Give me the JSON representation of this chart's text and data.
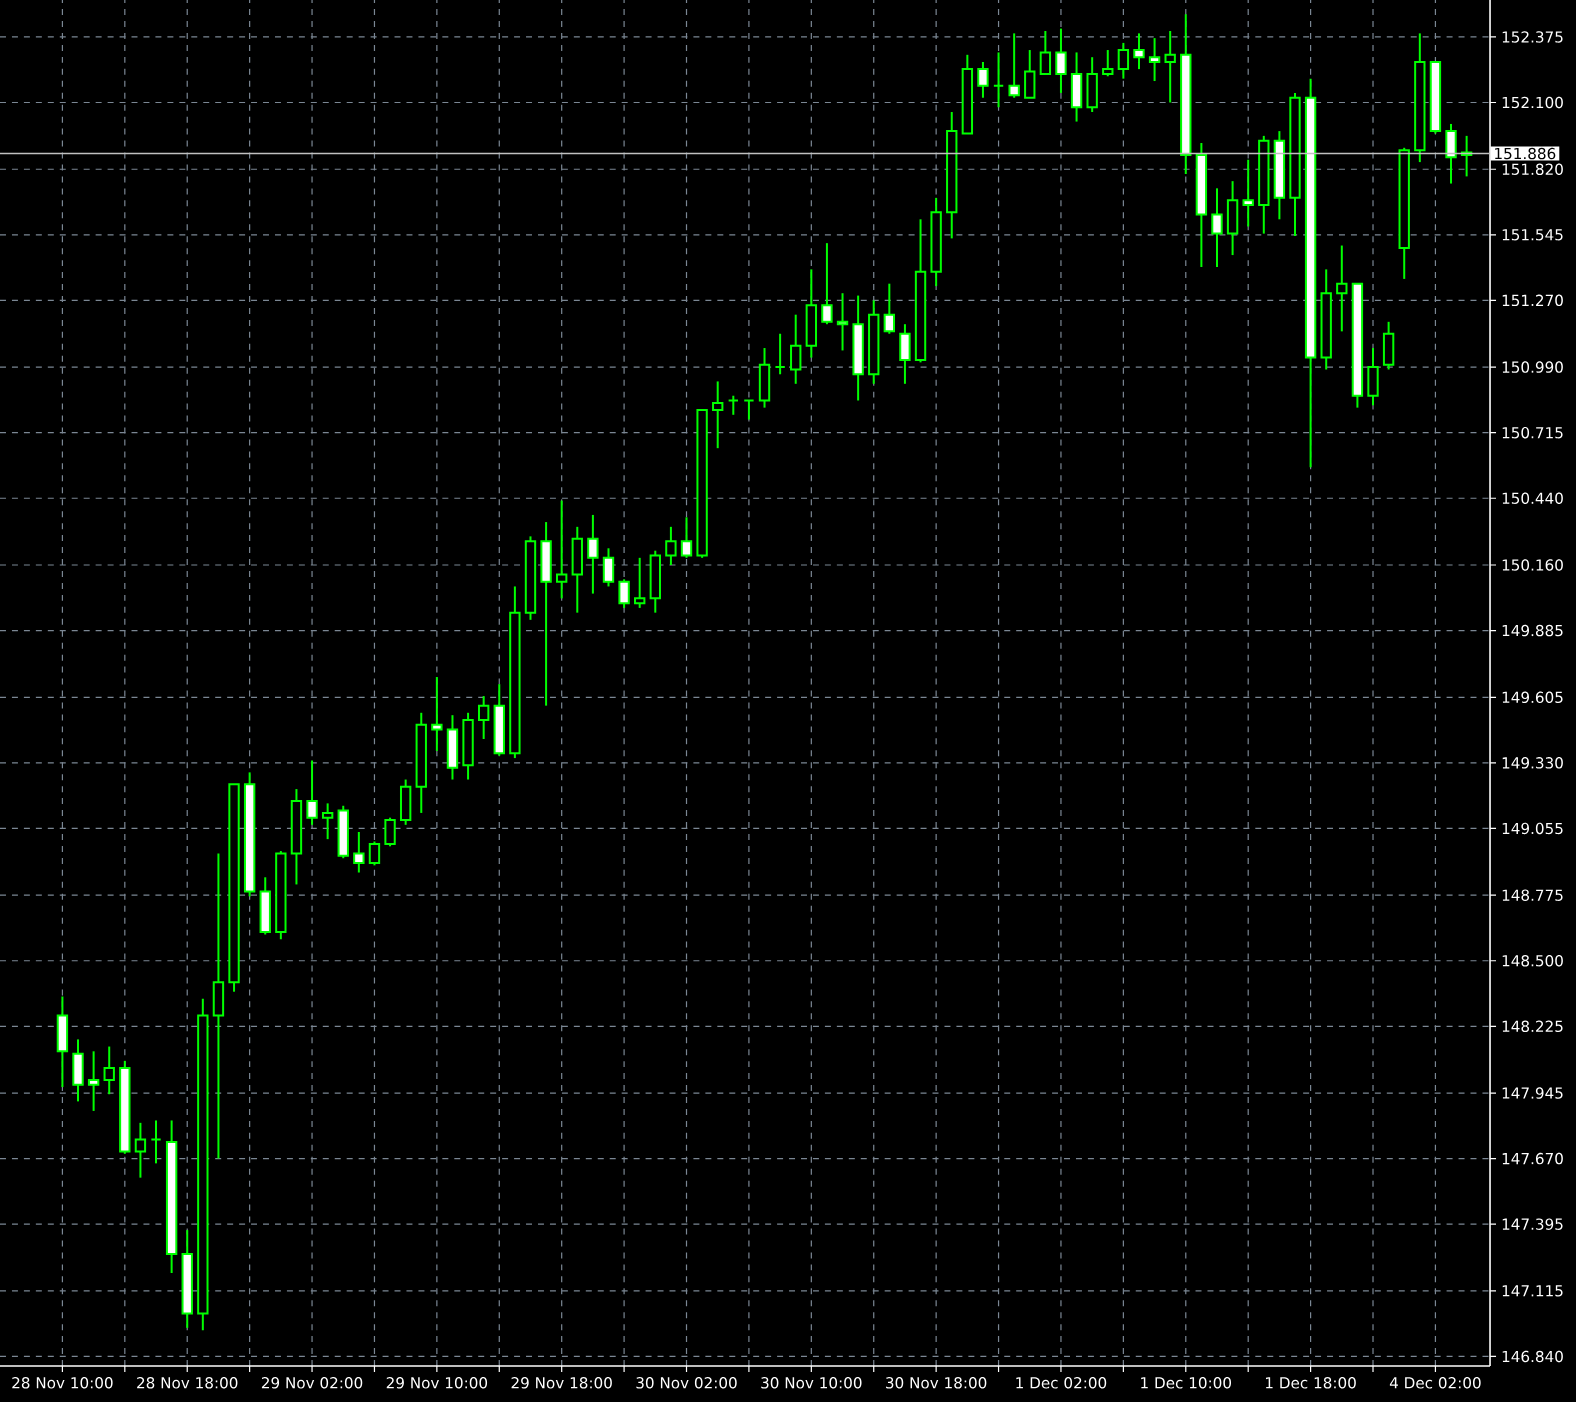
{
  "chart_data": {
    "type": "candlestick",
    "color": "#00ff00",
    "grid": true,
    "categories": [
      "28 Nov 10:00",
      null,
      null,
      null,
      null,
      null,
      null,
      null,
      "28 Nov 18:00",
      null,
      null,
      null,
      null,
      null,
      null,
      null,
      "29 Nov 02:00",
      null,
      null,
      null,
      null,
      null,
      null,
      null,
      "29 Nov 10:00",
      null,
      null,
      null,
      null,
      null,
      null,
      null,
      "29 Nov 18:00",
      null,
      null,
      null,
      null,
      null,
      null,
      null,
      "30 Nov 02:00",
      null,
      null,
      null,
      null,
      null,
      null,
      null,
      "30 Nov 10:00",
      null,
      null,
      null,
      null,
      null,
      null,
      null,
      "30 Nov 18:00",
      null,
      null,
      null,
      null,
      null,
      null,
      null,
      "1 Dec 02:00",
      null,
      null,
      null,
      null,
      null,
      null,
      null,
      "1 Dec 10:00",
      null,
      null,
      null,
      null,
      null,
      null,
      null,
      "1 Dec 18:00",
      null,
      null,
      null,
      null,
      null,
      null,
      null,
      "4 Dec 02:00",
      null,
      null
    ],
    "ohlc": [
      [
        148.27,
        148.35,
        147.97,
        148.12
      ],
      [
        148.11,
        148.17,
        147.91,
        147.98
      ],
      [
        148.0,
        148.12,
        147.87,
        147.98
      ],
      [
        148.0,
        148.14,
        147.94,
        148.05
      ],
      [
        148.05,
        148.08,
        147.69,
        147.7
      ],
      [
        147.7,
        147.82,
        147.59,
        147.75
      ],
      [
        147.75,
        147.83,
        147.65,
        147.75
      ],
      [
        147.74,
        147.83,
        147.19,
        147.27
      ],
      [
        147.27,
        147.37,
        146.96,
        147.02
      ],
      [
        147.02,
        148.34,
        146.95,
        148.27
      ],
      [
        148.27,
        148.95,
        147.67,
        148.41
      ],
      [
        148.41,
        149.24,
        148.37,
        149.24
      ],
      [
        149.24,
        149.29,
        148.77,
        148.79
      ],
      [
        148.79,
        148.85,
        148.61,
        148.62
      ],
      [
        148.62,
        148.96,
        148.59,
        148.95
      ],
      [
        148.95,
        149.22,
        148.82,
        149.17
      ],
      [
        149.17,
        149.34,
        149.07,
        149.1
      ],
      [
        149.1,
        149.16,
        149.01,
        149.12
      ],
      [
        149.13,
        149.15,
        148.93,
        148.94
      ],
      [
        148.95,
        149.04,
        148.87,
        148.91
      ],
      [
        148.91,
        149.0,
        148.9,
        148.99
      ],
      [
        148.99,
        149.1,
        148.98,
        149.09
      ],
      [
        149.09,
        149.26,
        149.07,
        149.23
      ],
      [
        149.23,
        149.54,
        149.12,
        149.49
      ],
      [
        149.49,
        149.69,
        149.38,
        149.47
      ],
      [
        149.47,
        149.53,
        149.26,
        149.31
      ],
      [
        149.32,
        149.54,
        149.26,
        149.51
      ],
      [
        149.51,
        149.61,
        149.43,
        149.57
      ],
      [
        149.57,
        149.66,
        149.36,
        149.37
      ],
      [
        149.37,
        150.07,
        149.35,
        149.96
      ],
      [
        149.96,
        150.28,
        149.93,
        150.26
      ],
      [
        150.26,
        150.34,
        149.57,
        150.09
      ],
      [
        150.09,
        150.43,
        150.02,
        150.12
      ],
      [
        150.12,
        150.32,
        149.96,
        150.27
      ],
      [
        150.27,
        150.37,
        150.04,
        150.19
      ],
      [
        150.19,
        150.23,
        150.07,
        150.09
      ],
      [
        150.09,
        150.1,
        149.98,
        150.0
      ],
      [
        150.0,
        150.19,
        149.98,
        150.02
      ],
      [
        150.02,
        150.22,
        149.96,
        150.2
      ],
      [
        150.2,
        150.32,
        150.16,
        150.26
      ],
      [
        150.26,
        150.36,
        150.19,
        150.2
      ],
      [
        150.2,
        150.81,
        150.19,
        150.81
      ],
      [
        150.81,
        150.93,
        150.65,
        150.84
      ],
      [
        150.85,
        150.87,
        150.79,
        150.85
      ],
      [
        150.85,
        150.85,
        150.77,
        150.85
      ],
      [
        150.85,
        151.07,
        150.82,
        151.0
      ],
      [
        150.99,
        151.13,
        150.96,
        150.99
      ],
      [
        150.98,
        151.21,
        150.92,
        151.08
      ],
      [
        151.08,
        151.4,
        151.03,
        151.25
      ],
      [
        151.25,
        151.51,
        151.17,
        151.18
      ],
      [
        151.18,
        151.3,
        151.06,
        151.17
      ],
      [
        151.17,
        151.29,
        150.85,
        150.96
      ],
      [
        150.96,
        151.27,
        150.92,
        151.21
      ],
      [
        151.21,
        151.34,
        151.13,
        151.14
      ],
      [
        151.13,
        151.17,
        150.92,
        151.02
      ],
      [
        151.02,
        151.61,
        151.01,
        151.39
      ],
      [
        151.39,
        151.7,
        151.33,
        151.64
      ],
      [
        151.64,
        152.06,
        151.53,
        151.98
      ],
      [
        151.97,
        152.3,
        151.97,
        152.24
      ],
      [
        152.24,
        152.27,
        152.12,
        152.17
      ],
      [
        152.17,
        152.31,
        152.08,
        152.17
      ],
      [
        152.17,
        152.39,
        152.12,
        152.13
      ],
      [
        152.12,
        152.32,
        152.12,
        152.23
      ],
      [
        152.22,
        152.4,
        152.22,
        152.31
      ],
      [
        152.31,
        152.41,
        152.14,
        152.22
      ],
      [
        152.22,
        152.31,
        152.02,
        152.08
      ],
      [
        152.08,
        152.29,
        152.06,
        152.22
      ],
      [
        152.22,
        152.32,
        152.21,
        152.24
      ],
      [
        152.24,
        152.35,
        152.2,
        152.32
      ],
      [
        152.32,
        152.39,
        152.24,
        152.29
      ],
      [
        152.29,
        152.37,
        152.19,
        152.27
      ],
      [
        152.27,
        152.4,
        152.1,
        152.3
      ],
      [
        152.3,
        152.47,
        151.8,
        151.88
      ],
      [
        151.88,
        151.93,
        151.41,
        151.63
      ],
      [
        151.63,
        151.74,
        151.41,
        151.55
      ],
      [
        151.55,
        151.77,
        151.46,
        151.69
      ],
      [
        151.69,
        151.86,
        151.58,
        151.67
      ],
      [
        151.67,
        151.96,
        151.55,
        151.94
      ],
      [
        151.94,
        151.98,
        151.61,
        151.7
      ],
      [
        151.7,
        152.14,
        151.54,
        152.12
      ],
      [
        152.12,
        152.2,
        150.57,
        151.03
      ],
      [
        151.03,
        151.4,
        150.98,
        151.3
      ],
      [
        151.3,
        151.5,
        151.14,
        151.34
      ],
      [
        151.34,
        151.34,
        150.82,
        150.87
      ],
      [
        150.87,
        151.07,
        150.83,
        150.99
      ],
      [
        151.0,
        151.18,
        150.98,
        151.13
      ],
      [
        151.49,
        151.91,
        151.36,
        151.9
      ],
      [
        151.9,
        152.39,
        151.85,
        152.27
      ],
      [
        152.27,
        152.27,
        151.97,
        151.98
      ],
      [
        151.98,
        152.01,
        151.76,
        151.87
      ],
      [
        151.88,
        151.96,
        151.79,
        151.89
      ]
    ],
    "ylim": [
      146.8,
      152.53
    ],
    "yticks": [
      {
        "value": 146.84,
        "label": "146.840"
      },
      {
        "value": 147.115,
        "label": "147.115"
      },
      {
        "value": 147.395,
        "label": "147.395"
      },
      {
        "value": 147.67,
        "label": "147.670"
      },
      {
        "value": 147.945,
        "label": "147.945"
      },
      {
        "value": 148.225,
        "label": "148.225"
      },
      {
        "value": 148.5,
        "label": "148.500"
      },
      {
        "value": 148.775,
        "label": "148.775"
      },
      {
        "value": 149.055,
        "label": "149.055"
      },
      {
        "value": 149.33,
        "label": "149.330"
      },
      {
        "value": 149.605,
        "label": "149.605"
      },
      {
        "value": 149.885,
        "label": "149.885"
      },
      {
        "value": 150.16,
        "label": "150.160"
      },
      {
        "value": 150.44,
        "label": "150.440"
      },
      {
        "value": 150.715,
        "label": "150.715"
      },
      {
        "value": 150.99,
        "label": "150.990"
      },
      {
        "value": 151.27,
        "label": "151.270"
      },
      {
        "value": 151.545,
        "label": "151.545"
      },
      {
        "value": 151.82,
        "label": "151.820"
      },
      {
        "value": 152.1,
        "label": "152.100"
      },
      {
        "value": 152.375,
        "label": "152.375"
      }
    ],
    "ref_lines": [
      {
        "axis": "y",
        "value": 151.886,
        "label": "151.886",
        "color": "#c0c0c0"
      }
    ]
  }
}
